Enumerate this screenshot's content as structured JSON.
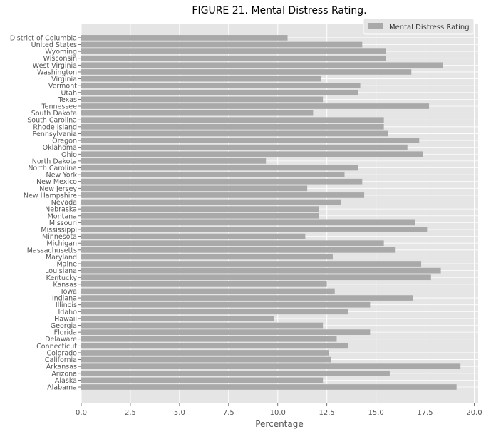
{
  "chart_data": {
    "type": "bar",
    "orientation": "horizontal",
    "title": "FIGURE 21. Mental Distress Rating.",
    "xlabel": "Percentage",
    "ylabel": "",
    "xlim": [
      0,
      20.2
    ],
    "xticks": [
      0,
      2.5,
      5,
      7.5,
      10,
      12.5,
      15,
      17.5,
      20
    ],
    "xtick_labels": [
      "0.0",
      "2.5",
      "5.0",
      "7.5",
      "10.0",
      "12.5",
      "15.0",
      "17.5",
      "20.0"
    ],
    "grid": true,
    "legend_position": "top-right",
    "colors": {
      "bar": "#a9a9a9",
      "plot_background": "#e5e5e5",
      "grid": "#ffffff",
      "text": "#555555"
    },
    "series": [
      {
        "name": "Mental Distress Rating",
        "categories": [
          "Alabama",
          "Alaska",
          "Arizona",
          "Arkansas",
          "California",
          "Colorado",
          "Connecticut",
          "Delaware",
          "Florida",
          "Georgia",
          "Hawaii",
          "Idaho",
          "Illinois",
          "Indiana",
          "Iowa",
          "Kansas",
          "Kentucky",
          "Louisiana",
          "Maine",
          "Maryland",
          "Massachusetts",
          "Michigan",
          "Minnesota",
          "Mississippi",
          "Missouri",
          "Montana",
          "Nebraska",
          "Nevada",
          "New Hampshire",
          "New Jersey",
          "New Mexico",
          "New York",
          "North Carolina",
          "North Dakota",
          "Ohio",
          "Oklahoma",
          "Oregon",
          "Pennsylvania",
          "Rhode Island",
          "South Carolina",
          "South Dakota",
          "Tennessee",
          "Texas",
          "Utah",
          "Vermont",
          "Virginia",
          "Washington",
          "West Virginia",
          "Wisconsin",
          "Wyoming",
          "United States",
          "District of Columbia"
        ],
        "values": [
          19.1,
          12.3,
          15.7,
          19.3,
          12.7,
          12.6,
          13.6,
          13.0,
          14.7,
          12.3,
          9.8,
          13.6,
          14.7,
          16.9,
          12.9,
          12.5,
          17.8,
          18.3,
          17.3,
          12.8,
          16.0,
          15.4,
          11.4,
          17.6,
          17.0,
          12.1,
          12.1,
          13.2,
          14.4,
          11.5,
          14.3,
          13.4,
          14.1,
          9.4,
          17.4,
          16.6,
          17.2,
          15.6,
          15.4,
          15.4,
          11.8,
          17.7,
          12.3,
          14.1,
          14.2,
          12.2,
          16.8,
          18.4,
          15.5,
          15.5,
          14.3,
          10.5
        ]
      }
    ]
  }
}
